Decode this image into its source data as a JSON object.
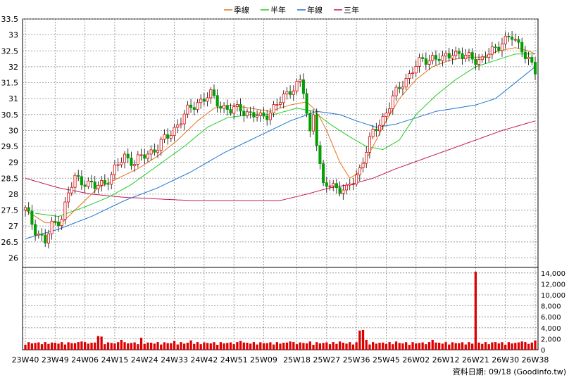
{
  "chart_data": {
    "type": "candlestick",
    "legend": [
      {
        "name": "季線",
        "color": "#e6731e"
      },
      {
        "name": "半年",
        "color": "#22cc22"
      },
      {
        "name": "年線",
        "color": "#1e73d2"
      },
      {
        "name": "三年",
        "color": "#c8195a"
      }
    ],
    "price_axis": {
      "min": 25.7,
      "max": 33.5,
      "ticks": [
        "26",
        "26.5",
        "27",
        "27.5",
        "28",
        "28.5",
        "29",
        "29.5",
        "30",
        "30.5",
        "31",
        "31.5",
        "32",
        "32.5",
        "33",
        "33.5"
      ]
    },
    "volume_axis": {
      "min": 0,
      "max": 15000,
      "ticks": [
        "0",
        "2,000",
        "4,000",
        "6,000",
        "8,000",
        "10,000",
        "12,000",
        "14,000"
      ]
    },
    "x_ticks": [
      "23W40",
      "23W49",
      "24W06",
      "24W15",
      "24W24",
      "24W33",
      "24W42",
      "24W51",
      "25W09",
      "25W18",
      "25W27",
      "25W36",
      "25W45",
      "26W02",
      "26W12",
      "26W21",
      "26W30",
      "26W38"
    ],
    "weeks": 155,
    "close_series": [
      {
        "w": 0,
        "v": 27.5
      },
      {
        "w": 3,
        "v": 26.9
      },
      {
        "w": 6,
        "v": 26.5
      },
      {
        "w": 8,
        "v": 27.0
      },
      {
        "w": 11,
        "v": 27.3
      },
      {
        "w": 13,
        "v": 28.0
      },
      {
        "w": 15,
        "v": 28.5
      },
      {
        "w": 18,
        "v": 28.4
      },
      {
        "w": 21,
        "v": 28.2
      },
      {
        "w": 24,
        "v": 28.4
      },
      {
        "w": 26,
        "v": 28.6
      },
      {
        "w": 28,
        "v": 28.9
      },
      {
        "w": 30,
        "v": 29.2
      },
      {
        "w": 33,
        "v": 29.0
      },
      {
        "w": 36,
        "v": 29.2
      },
      {
        "w": 40,
        "v": 29.5
      },
      {
        "w": 43,
        "v": 29.8
      },
      {
        "w": 46,
        "v": 30.2
      },
      {
        "w": 49,
        "v": 30.6
      },
      {
        "w": 52,
        "v": 30.9
      },
      {
        "w": 56,
        "v": 31.1
      },
      {
        "w": 59,
        "v": 30.8
      },
      {
        "w": 62,
        "v": 30.6
      },
      {
        "w": 65,
        "v": 30.7
      },
      {
        "w": 68,
        "v": 30.5
      },
      {
        "w": 71,
        "v": 30.4
      },
      {
        "w": 74,
        "v": 30.6
      },
      {
        "w": 77,
        "v": 30.9
      },
      {
        "w": 80,
        "v": 31.3
      },
      {
        "w": 83,
        "v": 31.5
      },
      {
        "w": 84,
        "v": 31.2
      },
      {
        "w": 85,
        "v": 30.5
      },
      {
        "w": 86,
        "v": 29.9
      },
      {
        "w": 87,
        "v": 30.6
      },
      {
        "w": 88,
        "v": 29.7
      },
      {
        "w": 89,
        "v": 28.9
      },
      {
        "w": 90,
        "v": 28.2
      },
      {
        "w": 92,
        "v": 28.3
      },
      {
        "w": 95,
        "v": 28.2
      },
      {
        "w": 97,
        "v": 28.1
      },
      {
        "w": 99,
        "v": 28.4
      },
      {
        "w": 101,
        "v": 28.8
      },
      {
        "w": 103,
        "v": 29.4
      },
      {
        "w": 105,
        "v": 29.9
      },
      {
        "w": 108,
        "v": 30.4
      },
      {
        "w": 111,
        "v": 31.0
      },
      {
        "w": 114,
        "v": 31.5
      },
      {
        "w": 117,
        "v": 31.9
      },
      {
        "w": 120,
        "v": 32.2
      },
      {
        "w": 123,
        "v": 32.3
      },
      {
        "w": 126,
        "v": 32.2
      },
      {
        "w": 129,
        "v": 32.5
      },
      {
        "w": 132,
        "v": 32.3
      },
      {
        "w": 135,
        "v": 32.3
      },
      {
        "w": 138,
        "v": 32.2
      },
      {
        "w": 141,
        "v": 32.5
      },
      {
        "w": 144,
        "v": 32.8
      },
      {
        "w": 147,
        "v": 32.9
      },
      {
        "w": 150,
        "v": 32.6
      },
      {
        "w": 152,
        "v": 32.2
      },
      {
        "w": 154,
        "v": 31.8
      }
    ],
    "ma_quarter": [
      {
        "w": 0,
        "v": 27.5
      },
      {
        "w": 6,
        "v": 27.1
      },
      {
        "w": 11,
        "v": 27.1
      },
      {
        "w": 16,
        "v": 27.6
      },
      {
        "w": 22,
        "v": 28.2
      },
      {
        "w": 28,
        "v": 28.5
      },
      {
        "w": 34,
        "v": 28.8
      },
      {
        "w": 40,
        "v": 29.2
      },
      {
        "w": 46,
        "v": 29.7
      },
      {
        "w": 52,
        "v": 30.3
      },
      {
        "w": 57,
        "v": 30.7
      },
      {
        "w": 62,
        "v": 30.8
      },
      {
        "w": 68,
        "v": 30.7
      },
      {
        "w": 74,
        "v": 30.6
      },
      {
        "w": 80,
        "v": 30.8
      },
      {
        "w": 85,
        "v": 30.9
      },
      {
        "w": 88,
        "v": 30.6
      },
      {
        "w": 91,
        "v": 30.0
      },
      {
        "w": 95,
        "v": 29.0
      },
      {
        "w": 98,
        "v": 28.5
      },
      {
        "w": 101,
        "v": 28.7
      },
      {
        "w": 105,
        "v": 29.5
      },
      {
        "w": 109,
        "v": 30.3
      },
      {
        "w": 113,
        "v": 31.0
      },
      {
        "w": 118,
        "v": 31.6
      },
      {
        "w": 123,
        "v": 32.0
      },
      {
        "w": 128,
        "v": 32.2
      },
      {
        "w": 133,
        "v": 32.3
      },
      {
        "w": 138,
        "v": 32.3
      },
      {
        "w": 143,
        "v": 32.5
      },
      {
        "w": 148,
        "v": 32.6
      },
      {
        "w": 152,
        "v": 32.5
      },
      {
        "w": 154,
        "v": 32.4
      }
    ],
    "ma_half": [
      {
        "w": 3,
        "v": 27.4
      },
      {
        "w": 10,
        "v": 27.3
      },
      {
        "w": 18,
        "v": 27.6
      },
      {
        "w": 25,
        "v": 27.9
      },
      {
        "w": 32,
        "v": 28.3
      },
      {
        "w": 40,
        "v": 28.9
      },
      {
        "w": 48,
        "v": 29.5
      },
      {
        "w": 55,
        "v": 30.1
      },
      {
        "w": 61,
        "v": 30.4
      },
      {
        "w": 68,
        "v": 30.5
      },
      {
        "w": 75,
        "v": 30.5
      },
      {
        "w": 82,
        "v": 30.7
      },
      {
        "w": 87,
        "v": 30.6
      },
      {
        "w": 92,
        "v": 30.2
      },
      {
        "w": 98,
        "v": 29.8
      },
      {
        "w": 103,
        "v": 29.5
      },
      {
        "w": 108,
        "v": 29.4
      },
      {
        "w": 113,
        "v": 29.7
      },
      {
        "w": 118,
        "v": 30.5
      },
      {
        "w": 124,
        "v": 31.1
      },
      {
        "w": 130,
        "v": 31.6
      },
      {
        "w": 136,
        "v": 32.0
      },
      {
        "w": 142,
        "v": 32.2
      },
      {
        "w": 148,
        "v": 32.4
      },
      {
        "w": 154,
        "v": 32.4
      }
    ],
    "ma_year": [
      {
        "w": 0,
        "v": 26.6
      },
      {
        "w": 10,
        "v": 26.9
      },
      {
        "w": 20,
        "v": 27.3
      },
      {
        "w": 30,
        "v": 27.8
      },
      {
        "w": 40,
        "v": 28.2
      },
      {
        "w": 50,
        "v": 28.7
      },
      {
        "w": 60,
        "v": 29.3
      },
      {
        "w": 70,
        "v": 29.8
      },
      {
        "w": 80,
        "v": 30.3
      },
      {
        "w": 88,
        "v": 30.6
      },
      {
        "w": 95,
        "v": 30.5
      },
      {
        "w": 100,
        "v": 30.3
      },
      {
        "w": 106,
        "v": 30.1
      },
      {
        "w": 112,
        "v": 30.2
      },
      {
        "w": 118,
        "v": 30.4
      },
      {
        "w": 124,
        "v": 30.6
      },
      {
        "w": 130,
        "v": 30.7
      },
      {
        "w": 136,
        "v": 30.8
      },
      {
        "w": 142,
        "v": 31.0
      },
      {
        "w": 148,
        "v": 31.5
      },
      {
        "w": 154,
        "v": 32.0
      }
    ],
    "ma_3year": [
      {
        "w": 0,
        "v": 28.5
      },
      {
        "w": 10,
        "v": 28.2
      },
      {
        "w": 20,
        "v": 28.0
      },
      {
        "w": 30,
        "v": 27.9
      },
      {
        "w": 40,
        "v": 27.85
      },
      {
        "w": 50,
        "v": 27.8
      },
      {
        "w": 60,
        "v": 27.8
      },
      {
        "w": 70,
        "v": 27.8
      },
      {
        "w": 77,
        "v": 27.8
      },
      {
        "w": 85,
        "v": 28.0
      },
      {
        "w": 92,
        "v": 28.2
      },
      {
        "w": 98,
        "v": 28.3
      },
      {
        "w": 105,
        "v": 28.5
      },
      {
        "w": 112,
        "v": 28.8
      },
      {
        "w": 120,
        "v": 29.1
      },
      {
        "w": 128,
        "v": 29.4
      },
      {
        "w": 136,
        "v": 29.7
      },
      {
        "w": 144,
        "v": 30.0
      },
      {
        "w": 154,
        "v": 30.3
      }
    ],
    "volume_base": 900,
    "volume_spikes": [
      {
        "w": 16,
        "v": 1400
      },
      {
        "w": 17,
        "v": 1500
      },
      {
        "w": 22,
        "v": 2500
      },
      {
        "w": 23,
        "v": 2400
      },
      {
        "w": 29,
        "v": 1800
      },
      {
        "w": 35,
        "v": 2200
      },
      {
        "w": 45,
        "v": 1600
      },
      {
        "w": 50,
        "v": 1700
      },
      {
        "w": 65,
        "v": 1600
      },
      {
        "w": 80,
        "v": 1500
      },
      {
        "w": 86,
        "v": 1500
      },
      {
        "w": 95,
        "v": 1500
      },
      {
        "w": 101,
        "v": 3500
      },
      {
        "w": 102,
        "v": 3600
      },
      {
        "w": 103,
        "v": 1800
      },
      {
        "w": 112,
        "v": 1500
      },
      {
        "w": 123,
        "v": 1800
      },
      {
        "w": 136,
        "v": 14200
      },
      {
        "w": 142,
        "v": 1400
      },
      {
        "w": 150,
        "v": 1500
      },
      {
        "w": 154,
        "v": 1700
      }
    ],
    "footer": "資料日期: 09/18  (Goodinfo.tw)"
  }
}
